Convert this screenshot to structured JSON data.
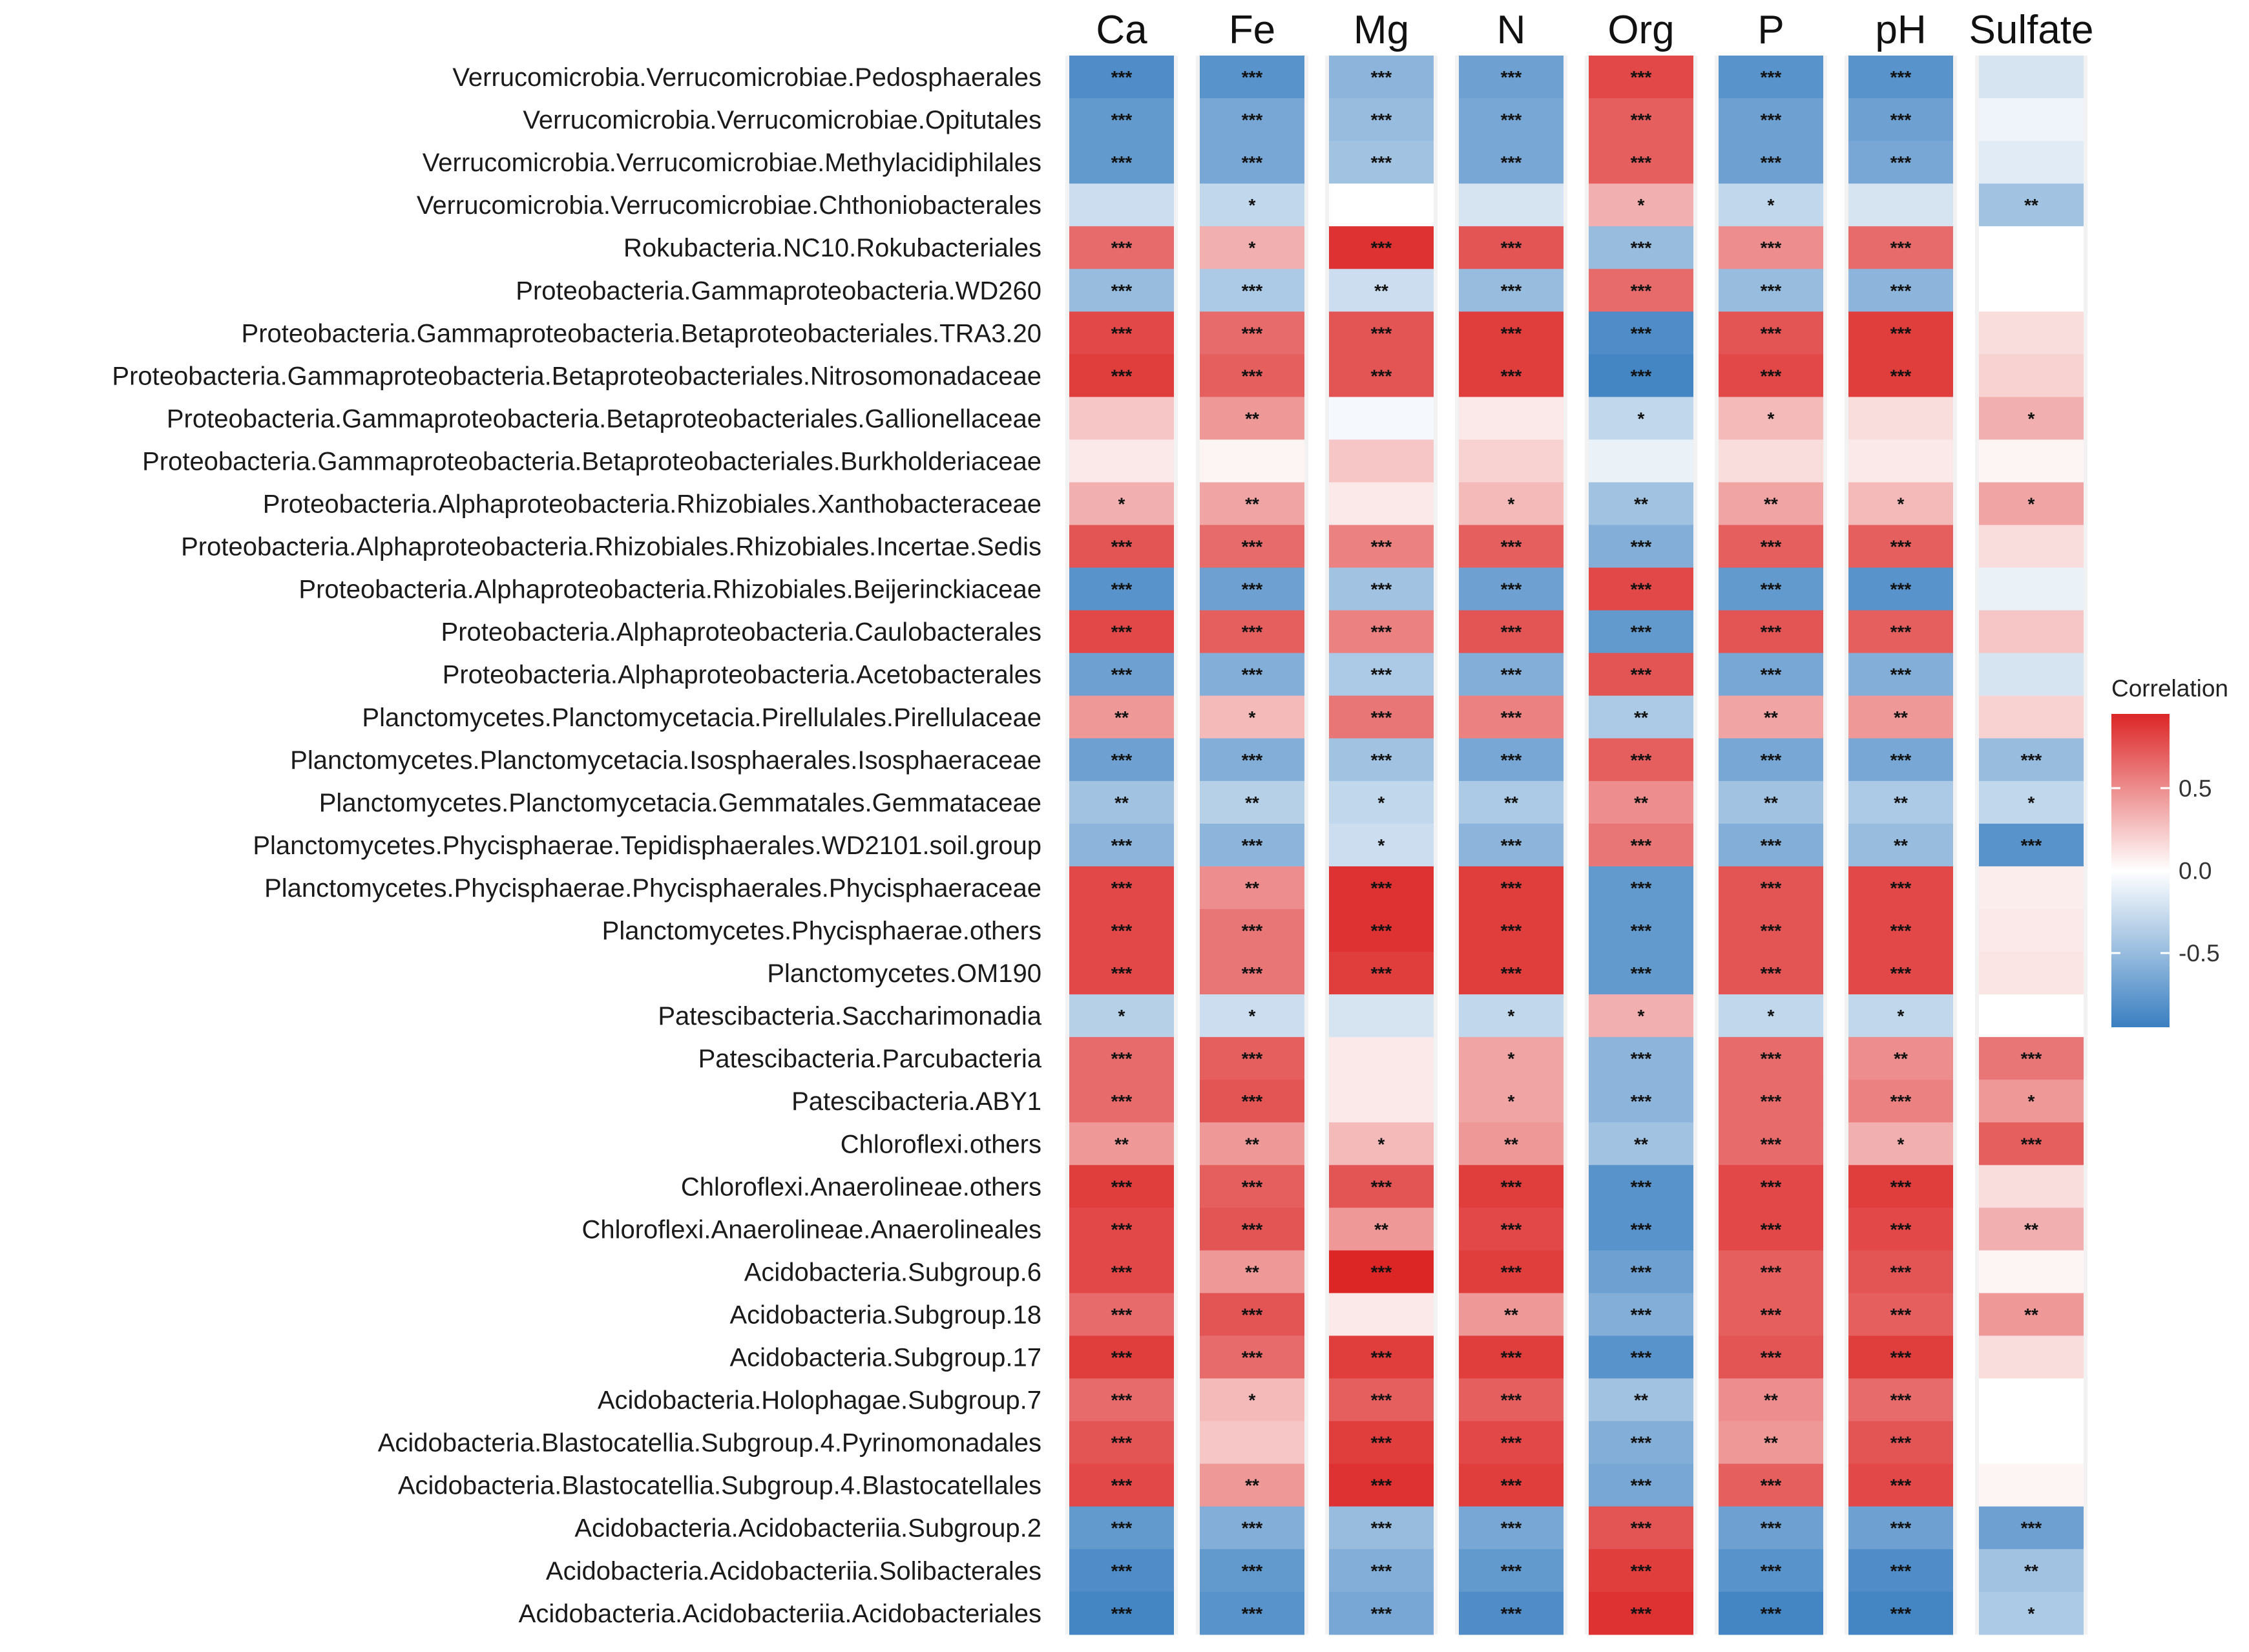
{
  "chart_data": {
    "type": "heatmap",
    "title": "",
    "xlabel": "",
    "ylabel": "",
    "columns": [
      "Ca",
      "Fe",
      "Mg",
      "N",
      "Org",
      "P",
      "pH",
      "Sulfate"
    ],
    "rows": [
      "Verrucomicrobia.Verrucomicrobiae.Pedosphaerales",
      "Verrucomicrobia.Verrucomicrobiae.Opitutales",
      "Verrucomicrobia.Verrucomicrobiae.Methylacidiphilales",
      "Verrucomicrobia.Verrucomicrobiae.Chthoniobacterales",
      "Rokubacteria.NC10.Rokubacteriales",
      "Proteobacteria.Gammaproteobacteria.WD260",
      "Proteobacteria.Gammaproteobacteria.Betaproteobacteriales.TRA3.20",
      "Proteobacteria.Gammaproteobacteria.Betaproteobacteriales.Nitrosomonadaceae",
      "Proteobacteria.Gammaproteobacteria.Betaproteobacteriales.Gallionellaceae",
      "Proteobacteria.Gammaproteobacteria.Betaproteobacteriales.Burkholderiaceae",
      "Proteobacteria.Alphaproteobacteria.Rhizobiales.Xanthobacteraceae",
      "Proteobacteria.Alphaproteobacteria.Rhizobiales.Rhizobiales.Incertae.Sedis",
      "Proteobacteria.Alphaproteobacteria.Rhizobiales.Beijerinckiaceae",
      "Proteobacteria.Alphaproteobacteria.Caulobacterales",
      "Proteobacteria.Alphaproteobacteria.Acetobacterales",
      "Planctomycetes.Planctomycetacia.Pirellulales.Pirellulaceae",
      "Planctomycetes.Planctomycetacia.Isosphaerales.Isosphaeraceae",
      "Planctomycetes.Planctomycetacia.Gemmatales.Gemmataceae",
      "Planctomycetes.Phycisphaerae.Tepidisphaerales.WD2101.soil.group",
      "Planctomycetes.Phycisphaerae.Phycisphaerales.Phycisphaeraceae",
      "Planctomycetes.Phycisphaerae.others",
      "Planctomycetes.OM190",
      "Patescibacteria.Saccharimonadia",
      "Patescibacteria.Parcubacteria",
      "Patescibacteria.ABY1",
      "Chloroflexi.others",
      "Chloroflexi.Anaerolineae.others",
      "Chloroflexi.Anaerolineae.Anaerolineales",
      "Acidobacteria.Subgroup.6",
      "Acidobacteria.Subgroup.18",
      "Acidobacteria.Subgroup.17",
      "Acidobacteria.Holophagae.Subgroup.7",
      "Acidobacteria.Blastocatellia.Subgroup.4.Pyrinomonadales",
      "Acidobacteria.Blastocatellia.Subgroup.4.Blastocatellales",
      "Acidobacteria.Acidobacteriia.Subgroup.2",
      "Acidobacteria.Acidobacteriia.Solibacterales",
      "Acidobacteria.Acidobacteriia.Acidobacteriales"
    ],
    "values": [
      [
        -0.85,
        -0.8,
        -0.55,
        -0.7,
        0.8,
        -0.8,
        -0.8,
        -0.2
      ],
      [
        -0.75,
        -0.65,
        -0.5,
        -0.65,
        0.7,
        -0.7,
        -0.7,
        -0.08
      ],
      [
        -0.75,
        -0.65,
        -0.45,
        -0.65,
        0.7,
        -0.7,
        -0.65,
        -0.15
      ],
      [
        -0.25,
        -0.3,
        0.0,
        -0.2,
        0.35,
        -0.3,
        -0.2,
        -0.45
      ],
      [
        0.65,
        0.35,
        0.9,
        0.75,
        -0.5,
        0.5,
        0.65,
        0.0
      ],
      [
        -0.5,
        -0.4,
        -0.25,
        -0.5,
        0.65,
        -0.5,
        -0.55,
        0.0
      ],
      [
        0.8,
        0.65,
        0.75,
        0.85,
        -0.85,
        0.75,
        0.85,
        0.15
      ],
      [
        0.85,
        0.7,
        0.75,
        0.85,
        -0.9,
        0.8,
        0.85,
        0.2
      ],
      [
        0.25,
        0.45,
        -0.05,
        0.1,
        -0.3,
        0.3,
        0.15,
        0.35
      ],
      [
        0.1,
        0.05,
        0.25,
        0.2,
        -0.1,
        0.15,
        0.1,
        0.05
      ],
      [
        0.35,
        0.4,
        0.1,
        0.3,
        -0.45,
        0.4,
        0.3,
        0.4
      ],
      [
        0.75,
        0.65,
        0.55,
        0.7,
        -0.6,
        0.7,
        0.7,
        0.15
      ],
      [
        -0.8,
        -0.7,
        -0.45,
        -0.7,
        0.8,
        -0.75,
        -0.8,
        -0.1
      ],
      [
        0.8,
        0.7,
        0.55,
        0.75,
        -0.75,
        0.75,
        0.7,
        0.25
      ],
      [
        -0.7,
        -0.6,
        -0.4,
        -0.6,
        0.75,
        -0.65,
        -0.6,
        -0.2
      ],
      [
        0.45,
        0.3,
        0.6,
        0.55,
        -0.4,
        0.4,
        0.45,
        0.2
      ],
      [
        -0.7,
        -0.6,
        -0.45,
        -0.65,
        0.7,
        -0.65,
        -0.65,
        -0.5
      ],
      [
        -0.45,
        -0.35,
        -0.3,
        -0.4,
        0.5,
        -0.45,
        -0.4,
        -0.3
      ],
      [
        -0.55,
        -0.55,
        -0.25,
        -0.55,
        0.6,
        -0.6,
        -0.5,
        -0.8
      ],
      [
        0.8,
        0.5,
        0.9,
        0.85,
        -0.75,
        0.75,
        0.8,
        0.08
      ],
      [
        0.8,
        0.6,
        0.9,
        0.85,
        -0.75,
        0.75,
        0.8,
        0.1
      ],
      [
        0.8,
        0.6,
        0.85,
        0.85,
        -0.75,
        0.75,
        0.8,
        0.12
      ],
      [
        -0.35,
        -0.25,
        -0.2,
        -0.3,
        0.35,
        -0.3,
        -0.3,
        0.0
      ],
      [
        0.65,
        0.7,
        0.1,
        0.4,
        -0.55,
        0.65,
        0.5,
        0.6
      ],
      [
        0.65,
        0.75,
        0.1,
        0.4,
        -0.55,
        0.65,
        0.55,
        0.45
      ],
      [
        0.45,
        0.45,
        0.3,
        0.45,
        -0.45,
        0.65,
        0.35,
        0.7
      ],
      [
        0.85,
        0.7,
        0.75,
        0.85,
        -0.8,
        0.8,
        0.85,
        0.15
      ],
      [
        0.8,
        0.75,
        0.45,
        0.8,
        -0.8,
        0.8,
        0.8,
        0.35
      ],
      [
        0.8,
        0.45,
        0.95,
        0.85,
        -0.7,
        0.7,
        0.75,
        0.05
      ],
      [
        0.65,
        0.75,
        0.1,
        0.45,
        -0.6,
        0.7,
        0.7,
        0.45
      ],
      [
        0.85,
        0.65,
        0.85,
        0.85,
        -0.8,
        0.75,
        0.85,
        0.15
      ],
      [
        0.65,
        0.3,
        0.7,
        0.7,
        -0.45,
        0.5,
        0.65,
        0.0
      ],
      [
        0.75,
        0.25,
        0.85,
        0.8,
        -0.6,
        0.45,
        0.75,
        0.0
      ],
      [
        0.8,
        0.45,
        0.9,
        0.85,
        -0.65,
        0.7,
        0.8,
        0.05
      ],
      [
        -0.75,
        -0.6,
        -0.5,
        -0.65,
        0.75,
        -0.7,
        -0.7,
        -0.7
      ],
      [
        -0.85,
        -0.75,
        -0.6,
        -0.75,
        0.85,
        -0.8,
        -0.85,
        -0.45
      ],
      [
        -0.9,
        -0.8,
        -0.65,
        -0.85,
        0.9,
        -0.9,
        -0.9,
        -0.4
      ]
    ],
    "significance": [
      [
        "***",
        "***",
        "***",
        "***",
        "***",
        "***",
        "***",
        ""
      ],
      [
        "***",
        "***",
        "***",
        "***",
        "***",
        "***",
        "***",
        ""
      ],
      [
        "***",
        "***",
        "***",
        "***",
        "***",
        "***",
        "***",
        ""
      ],
      [
        "",
        "*",
        "",
        "",
        "*",
        "*",
        "",
        "**"
      ],
      [
        "***",
        "*",
        "***",
        "***",
        "***",
        "***",
        "***",
        ""
      ],
      [
        "***",
        "***",
        "**",
        "***",
        "***",
        "***",
        "***",
        ""
      ],
      [
        "***",
        "***",
        "***",
        "***",
        "***",
        "***",
        "***",
        ""
      ],
      [
        "***",
        "***",
        "***",
        "***",
        "***",
        "***",
        "***",
        ""
      ],
      [
        "",
        "**",
        "",
        "",
        "*",
        "*",
        "",
        "*"
      ],
      [
        "",
        "",
        "",
        "",
        "",
        "",
        "",
        ""
      ],
      [
        "*",
        "**",
        "",
        "*",
        "**",
        "**",
        "*",
        "*"
      ],
      [
        "***",
        "***",
        "***",
        "***",
        "***",
        "***",
        "***",
        ""
      ],
      [
        "***",
        "***",
        "***",
        "***",
        "***",
        "***",
        "***",
        ""
      ],
      [
        "***",
        "***",
        "***",
        "***",
        "***",
        "***",
        "***",
        ""
      ],
      [
        "***",
        "***",
        "***",
        "***",
        "***",
        "***",
        "***",
        ""
      ],
      [
        "**",
        "*",
        "***",
        "***",
        "**",
        "**",
        "**",
        ""
      ],
      [
        "***",
        "***",
        "***",
        "***",
        "***",
        "***",
        "***",
        "***"
      ],
      [
        "**",
        "**",
        "*",
        "**",
        "**",
        "**",
        "**",
        "*"
      ],
      [
        "***",
        "***",
        "*",
        "***",
        "***",
        "***",
        "**",
        "***"
      ],
      [
        "***",
        "**",
        "***",
        "***",
        "***",
        "***",
        "***",
        ""
      ],
      [
        "***",
        "***",
        "***",
        "***",
        "***",
        "***",
        "***",
        ""
      ],
      [
        "***",
        "***",
        "***",
        "***",
        "***",
        "***",
        "***",
        ""
      ],
      [
        "*",
        "*",
        "",
        "*",
        "*",
        "*",
        "*",
        ""
      ],
      [
        "***",
        "***",
        "",
        "*",
        "***",
        "***",
        "**",
        "***"
      ],
      [
        "***",
        "***",
        "",
        "*",
        "***",
        "***",
        "***",
        "*"
      ],
      [
        "**",
        "**",
        "*",
        "**",
        "**",
        "***",
        "*",
        "***"
      ],
      [
        "***",
        "***",
        "***",
        "***",
        "***",
        "***",
        "***",
        ""
      ],
      [
        "***",
        "***",
        "**",
        "***",
        "***",
        "***",
        "***",
        "**"
      ],
      [
        "***",
        "**",
        "***",
        "***",
        "***",
        "***",
        "***",
        ""
      ],
      [
        "***",
        "***",
        "",
        "**",
        "***",
        "***",
        "***",
        "**"
      ],
      [
        "***",
        "***",
        "***",
        "***",
        "***",
        "***",
        "***",
        ""
      ],
      [
        "***",
        "*",
        "***",
        "***",
        "**",
        "**",
        "***",
        ""
      ],
      [
        "***",
        "",
        "***",
        "***",
        "***",
        "**",
        "***",
        ""
      ],
      [
        "***",
        "**",
        "***",
        "***",
        "***",
        "***",
        "***",
        ""
      ],
      [
        "***",
        "***",
        "***",
        "***",
        "***",
        "***",
        "***",
        "***"
      ],
      [
        "***",
        "***",
        "***",
        "***",
        "***",
        "***",
        "***",
        "**"
      ],
      [
        "***",
        "***",
        "***",
        "***",
        "***",
        "***",
        "***",
        "*"
      ]
    ],
    "legend": {
      "title": "Correlation",
      "ticks": [
        0.5,
        0.0,
        -0.5
      ],
      "tick_labels": [
        "0.5",
        "0.0",
        "-0.5"
      ],
      "range": [
        -0.95,
        0.95
      ],
      "position": "right"
    },
    "colors": {
      "low": "#3a7fc1",
      "mid": "#ffffff",
      "high": "#dc2626",
      "column_background": "#f2f2f2"
    }
  }
}
